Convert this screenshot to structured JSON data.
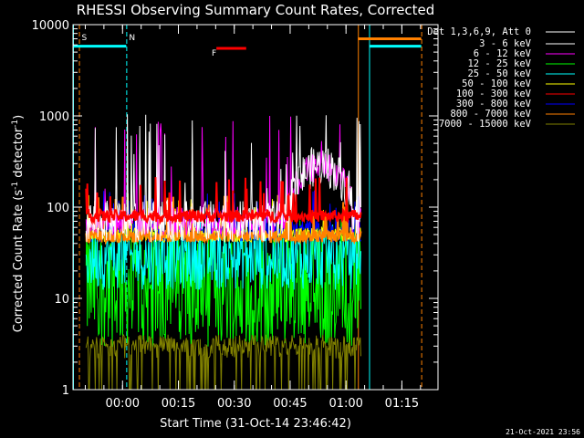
{
  "chart_data": {
    "type": "line",
    "title": "RHESSI Observing Summary Count Rates, Corrected",
    "xlabel": "Start Time (31-Oct-14 23:46:42)",
    "ylabel": "Corrected Count Rate (s",
    "ylabel_sup": "-1",
    "ylabel_mid": " detector",
    "ylabel_sup2": "-1",
    "ylabel_end": ")",
    "x_ticks": [
      "00:00",
      "00:15",
      "00:30",
      "00:45",
      "01:00",
      "01:15"
    ],
    "x_tick_minutes": [
      13.3,
      28.3,
      43.3,
      58.3,
      73.3,
      88.3
    ],
    "xlim_minutes": [
      0,
      98
    ],
    "yscale": "log",
    "ylim": [
      1,
      10000
    ],
    "y_ticks": [
      1,
      10,
      100,
      1000,
      10000
    ],
    "y_tick_labels": [
      "1",
      "10",
      "100",
      "1000",
      "10000"
    ],
    "legend_title": "Det 1,3,6,9, Att 0",
    "legend_position": "right-outside",
    "series": [
      {
        "name": "3 - 6 keV",
        "color": "#ffffff",
        "base": 70,
        "spread": 1.3,
        "spikes": 900
      },
      {
        "name": "6 - 12 keV",
        "color": "#ff00ff",
        "base": 70,
        "spread": 1.2,
        "spikes": 900
      },
      {
        "name": "12 - 25 keV",
        "color": "#00ff00",
        "base": 14,
        "spread": 2.2,
        "spikes": 60
      },
      {
        "name": "25 - 50 keV",
        "color": "#00ffff",
        "base": 28,
        "spread": 1.5,
        "spikes": 60
      },
      {
        "name": "50 - 100 keV",
        "color": "#ffff00",
        "base": 50,
        "spread": 1.1,
        "spikes": 70
      },
      {
        "name": "100 - 300 keV",
        "color": "#ff0000",
        "base": 80,
        "spread": 1.08,
        "spikes": 100
      },
      {
        "name": "300 - 800 keV",
        "color": "#0000ff",
        "base": 55,
        "spread": 1.15,
        "spikes": 70
      },
      {
        "name": "800 - 7000 keV",
        "color": "#ff8000",
        "base": 48,
        "spread": 1.08,
        "spikes": 60
      },
      {
        "name": "7000 - 15000 keV",
        "color": "#808000",
        "base": 2.5,
        "spread": 1.4,
        "spikes": 4
      }
    ],
    "data_start_minutes": 3.5,
    "data_end_minutes": 77.3,
    "annotations": [
      {
        "label": "S",
        "color": "#ff8000",
        "x_minutes": 1.6
      },
      {
        "label": "N",
        "color": "#00ffff",
        "x_minutes": 14.3
      },
      {
        "label": "F",
        "color": "#ff0000",
        "x_minutes": 36.5
      }
    ],
    "night_bars": [
      {
        "color": "#00ffff",
        "x_from": 0,
        "x_to": 14.3,
        "y": 5800
      },
      {
        "color": "#00ffff",
        "x_from": 79.5,
        "x_to": 93.5,
        "y": 5800
      },
      {
        "color": "#ff8000",
        "x_from": 76.5,
        "x_to": 93.5,
        "y": 7000
      },
      {
        "color": "#ff0000",
        "x_from": 38.5,
        "x_to": 46.5,
        "y": 5500
      }
    ],
    "vlines": [
      {
        "color": "#00ffff",
        "x_minutes": 0,
        "dash": false
      },
      {
        "color": "#ff8000",
        "x_minutes": 1.6,
        "dash": true
      },
      {
        "color": "#00ffff",
        "x_minutes": 14.3,
        "dash": true
      },
      {
        "color": "#ff8000",
        "x_minutes": 76.5,
        "dash": false
      },
      {
        "color": "#00ffff",
        "x_minutes": 79.5,
        "dash": false
      },
      {
        "color": "#ff8000",
        "x_minutes": 93.5,
        "dash": true
      }
    ]
  },
  "footer": {
    "timestamp": "21-Oct-2021 23:56"
  }
}
